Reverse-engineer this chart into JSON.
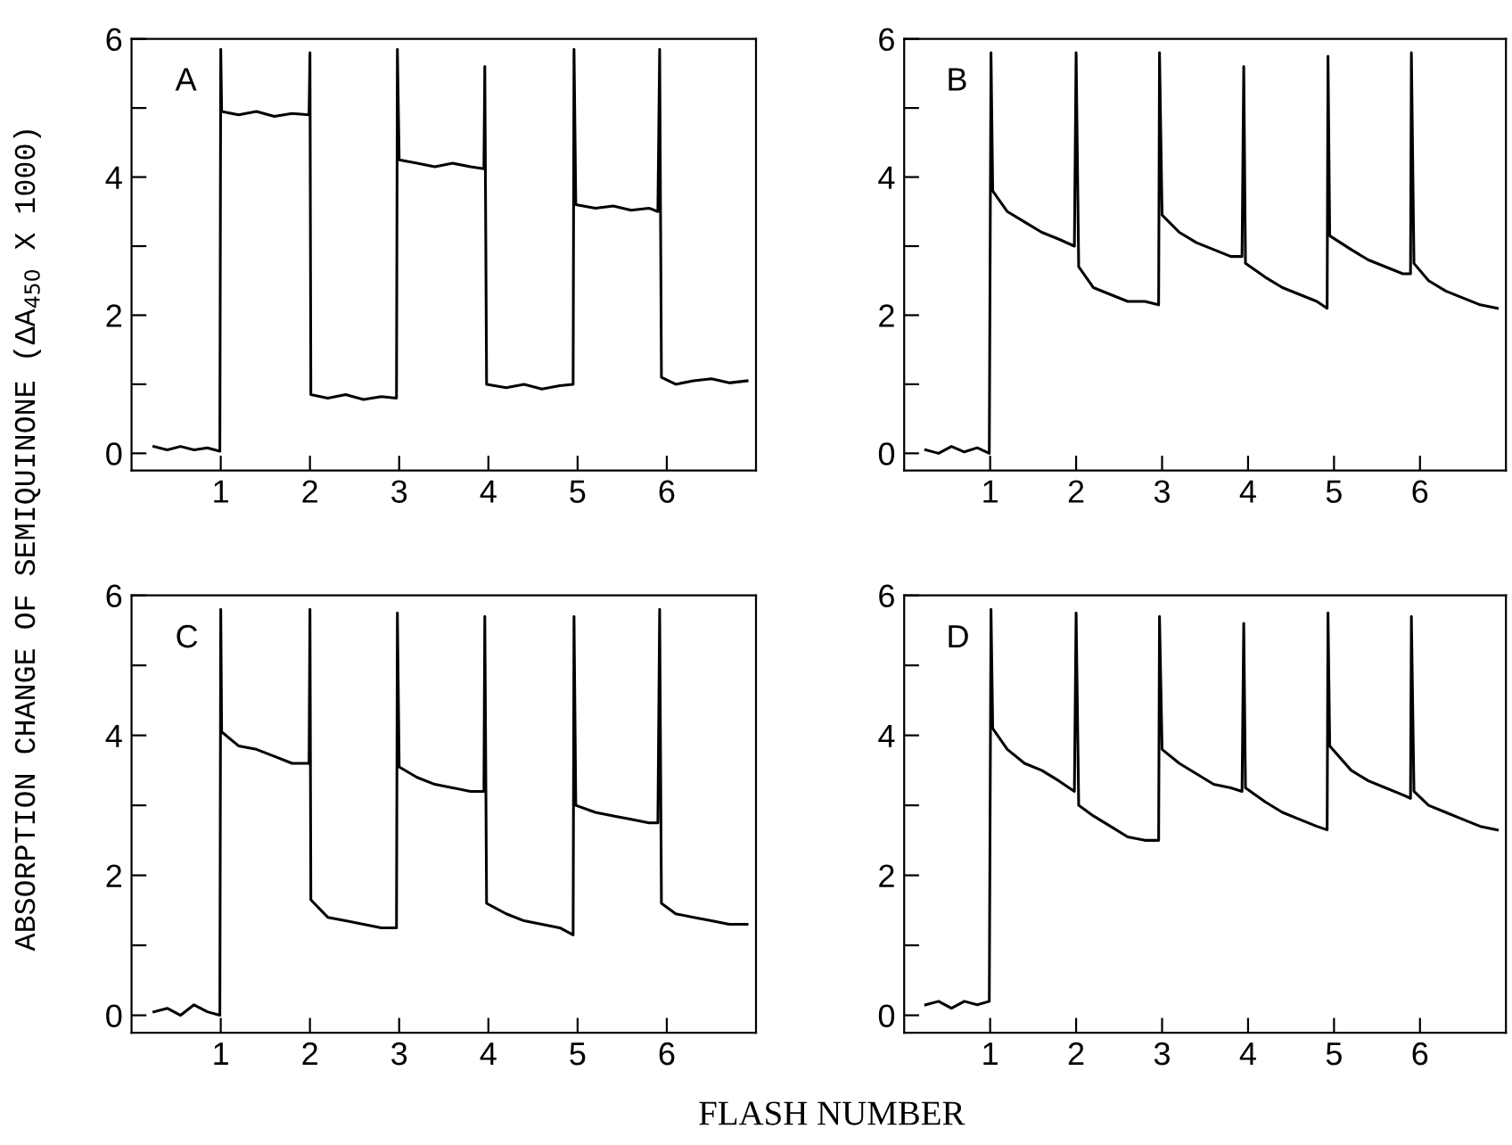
{
  "chart_data": [
    {
      "type": "line",
      "ylabel": "ABSORPTION CHANGE OF SEMIQUINONE (ΔA$_{450}$ X 1000)",
      "annotations": [
        "A"
      ],
      "xlim": [
        0,
        7
      ],
      "ylim": [
        -0.25,
        6
      ],
      "xticks": [
        1,
        2,
        3,
        4,
        5,
        6
      ],
      "yticks": [
        0,
        {
          "value": 1,
          "label": null
        },
        2,
        {
          "value": 3,
          "label": null
        },
        4,
        {
          "value": 5,
          "label": null
        },
        6
      ],
      "grid": false,
      "series": [
        {
          "color": "#000000",
          "x": [
            0.25,
            0.4,
            0.55,
            0.7,
            0.85,
            0.99,
            1.0,
            1.01,
            1.2,
            1.4,
            1.6,
            1.8,
            1.99,
            2.0,
            2.01,
            2.2,
            2.4,
            2.6,
            2.8,
            2.97,
            2.98,
            3.0,
            3.2,
            3.4,
            3.6,
            3.8,
            3.95,
            3.96,
            3.98,
            4.2,
            4.4,
            4.6,
            4.8,
            4.95,
            4.96,
            4.98,
            5.2,
            5.4,
            5.6,
            5.8,
            5.9,
            5.92,
            5.94,
            6.1,
            6.3,
            6.5,
            6.7,
            6.9
          ],
          "values": [
            0.1,
            0.05,
            0.1,
            0.05,
            0.08,
            0.03,
            5.85,
            4.95,
            4.9,
            4.95,
            4.88,
            4.92,
            4.9,
            5.8,
            0.85,
            0.8,
            0.85,
            0.78,
            0.82,
            0.8,
            5.85,
            4.25,
            4.2,
            4.15,
            4.2,
            4.15,
            4.12,
            5.6,
            1.0,
            0.95,
            1.0,
            0.93,
            0.98,
            1.0,
            5.85,
            3.6,
            3.55,
            3.58,
            3.52,
            3.55,
            3.5,
            5.85,
            1.1,
            1.0,
            1.05,
            1.08,
            1.02,
            1.05
          ]
        }
      ]
    },
    {
      "type": "line",
      "annotations": [
        "B"
      ],
      "xlim": [
        0,
        7
      ],
      "ylim": [
        -0.25,
        6
      ],
      "xticks": [
        1,
        2,
        3,
        4,
        5,
        6
      ],
      "yticks": [
        0,
        {
          "value": 1,
          "label": null
        },
        2,
        {
          "value": 3,
          "label": null
        },
        4,
        {
          "value": 5,
          "label": null
        },
        6
      ],
      "grid": false,
      "series": [
        {
          "color": "#000000",
          "x": [
            0.25,
            0.4,
            0.55,
            0.7,
            0.85,
            0.99,
            1.01,
            1.03,
            1.2,
            1.4,
            1.6,
            1.8,
            1.98,
            2.0,
            2.03,
            2.2,
            2.4,
            2.6,
            2.8,
            2.96,
            2.97,
            3.0,
            3.2,
            3.4,
            3.6,
            3.8,
            3.93,
            3.95,
            3.97,
            4.2,
            4.4,
            4.6,
            4.8,
            4.92,
            4.93,
            4.95,
            5.2,
            5.4,
            5.6,
            5.8,
            5.89,
            5.9,
            5.93,
            6.1,
            6.3,
            6.5,
            6.7,
            6.9
          ],
          "values": [
            0.05,
            0.0,
            0.1,
            0.02,
            0.08,
            0.0,
            5.8,
            3.8,
            3.5,
            3.35,
            3.2,
            3.1,
            3.0,
            5.8,
            2.7,
            2.4,
            2.3,
            2.2,
            2.2,
            2.15,
            5.8,
            3.45,
            3.2,
            3.05,
            2.95,
            2.85,
            2.85,
            5.6,
            2.75,
            2.55,
            2.4,
            2.3,
            2.2,
            2.1,
            5.75,
            3.15,
            2.95,
            2.8,
            2.7,
            2.6,
            2.6,
            5.8,
            2.75,
            2.5,
            2.35,
            2.25,
            2.15,
            2.1
          ]
        }
      ]
    },
    {
      "type": "line",
      "xlabel": "FLASH NUMBER",
      "annotations": [
        "C"
      ],
      "xlim": [
        0,
        7
      ],
      "ylim": [
        -0.25,
        6
      ],
      "xticks": [
        1,
        2,
        3,
        4,
        5,
        6
      ],
      "yticks": [
        0,
        {
          "value": 1,
          "label": null
        },
        2,
        {
          "value": 3,
          "label": null
        },
        4,
        {
          "value": 5,
          "label": null
        },
        6
      ],
      "grid": false,
      "series": [
        {
          "color": "#000000",
          "x": [
            0.25,
            0.4,
            0.55,
            0.7,
            0.85,
            0.99,
            1.0,
            1.01,
            1.2,
            1.4,
            1.6,
            1.8,
            1.99,
            2.0,
            2.01,
            2.2,
            2.4,
            2.6,
            2.8,
            2.97,
            2.98,
            3.0,
            3.2,
            3.4,
            3.6,
            3.8,
            3.95,
            3.96,
            3.98,
            4.2,
            4.4,
            4.6,
            4.8,
            4.95,
            4.96,
            4.98,
            5.2,
            5.4,
            5.6,
            5.8,
            5.9,
            5.92,
            5.94,
            6.1,
            6.3,
            6.5,
            6.7,
            6.9
          ],
          "values": [
            0.05,
            0.1,
            0.0,
            0.15,
            0.05,
            0.0,
            5.8,
            4.05,
            3.85,
            3.8,
            3.7,
            3.6,
            3.6,
            5.8,
            1.65,
            1.4,
            1.35,
            1.3,
            1.25,
            1.25,
            5.75,
            3.55,
            3.4,
            3.3,
            3.25,
            3.2,
            3.2,
            5.7,
            1.6,
            1.45,
            1.35,
            1.3,
            1.25,
            1.15,
            5.7,
            3.0,
            2.9,
            2.85,
            2.8,
            2.75,
            2.75,
            5.8,
            1.6,
            1.45,
            1.4,
            1.35,
            1.3,
            1.3
          ]
        }
      ]
    },
    {
      "type": "line",
      "annotations": [
        "D"
      ],
      "xlim": [
        0,
        7
      ],
      "ylim": [
        -0.25,
        6
      ],
      "xticks": [
        1,
        2,
        3,
        4,
        5,
        6
      ],
      "yticks": [
        0,
        {
          "value": 1,
          "label": null
        },
        2,
        {
          "value": 3,
          "label": null
        },
        4,
        {
          "value": 5,
          "label": null
        },
        6
      ],
      "grid": false,
      "series": [
        {
          "color": "#000000",
          "x": [
            0.25,
            0.4,
            0.55,
            0.7,
            0.85,
            0.99,
            1.01,
            1.03,
            1.2,
            1.4,
            1.6,
            1.8,
            1.98,
            2.0,
            2.03,
            2.2,
            2.4,
            2.6,
            2.8,
            2.96,
            2.97,
            3.0,
            3.2,
            3.4,
            3.6,
            3.8,
            3.93,
            3.95,
            3.97,
            4.2,
            4.4,
            4.6,
            4.8,
            4.92,
            4.93,
            4.95,
            5.2,
            5.4,
            5.6,
            5.8,
            5.89,
            5.9,
            5.93,
            6.1,
            6.3,
            6.5,
            6.7,
            6.9
          ],
          "values": [
            0.15,
            0.2,
            0.1,
            0.2,
            0.15,
            0.2,
            5.8,
            4.1,
            3.8,
            3.6,
            3.5,
            3.35,
            3.2,
            5.75,
            3.0,
            2.85,
            2.7,
            2.55,
            2.5,
            2.5,
            5.7,
            3.8,
            3.6,
            3.45,
            3.3,
            3.25,
            3.2,
            5.6,
            3.25,
            3.05,
            2.9,
            2.8,
            2.7,
            2.65,
            5.75,
            3.85,
            3.5,
            3.35,
            3.25,
            3.15,
            3.1,
            5.7,
            3.2,
            3.0,
            2.9,
            2.8,
            2.7,
            2.65
          ]
        }
      ]
    }
  ]
}
